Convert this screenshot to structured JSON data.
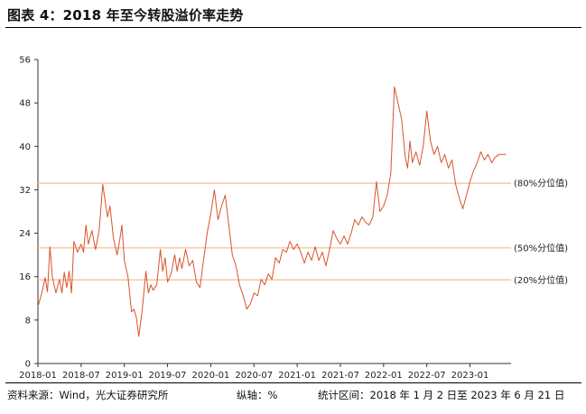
{
  "header": {
    "title": "图表 4：2018 年至今转股溢价率走势"
  },
  "footer": {
    "source": "资料来源：Wind，光大证券研究所",
    "unit": "纵轴：%",
    "period": "统计区间：2018 年 1 月 2 日至 2023 年 6 月 21 日"
  },
  "chart_data": {
    "type": "line",
    "title": "图表 4：2018 年至今转股溢价率走势",
    "xlabel": "",
    "ylabel": "",
    "ylim": [
      0,
      56
    ],
    "yticks": [
      0,
      8,
      16,
      24,
      32,
      40,
      48,
      56
    ],
    "xlim": [
      "2018-01",
      "2023-06"
    ],
    "xticks": [
      "2018-01",
      "2018-07",
      "2019-01",
      "2019-07",
      "2020-01",
      "2020-07",
      "2021-01",
      "2021-07",
      "2022-01",
      "2022-07",
      "2023-01"
    ],
    "grid": false,
    "line_color": "#d9532c",
    "reference_color": "#f5c49e",
    "reference_lines": [
      {
        "label": "(80%分位值)",
        "value": 33.2
      },
      {
        "label": "(50%分位值)",
        "value": 21.3
      },
      {
        "label": "(20%分位值)",
        "value": 15.4
      }
    ],
    "series": [
      {
        "values": [
          [
            "2018-01",
            10.5
          ],
          [
            "2018-01",
            12.8
          ],
          [
            "2018-02",
            15.8
          ],
          [
            "2018-02",
            13.2
          ],
          [
            "2018-02",
            21.5
          ],
          [
            "2018-03",
            16.0
          ],
          [
            "2018-03",
            13.0
          ],
          [
            "2018-04",
            15.5
          ],
          [
            "2018-04",
            13.0
          ],
          [
            "2018-04",
            16.8
          ],
          [
            "2018-05",
            14.0
          ],
          [
            "2018-05",
            17.0
          ],
          [
            "2018-05",
            13.0
          ],
          [
            "2018-06",
            22.5
          ],
          [
            "2018-06",
            20.5
          ],
          [
            "2018-07",
            22.0
          ],
          [
            "2018-07",
            20.5
          ],
          [
            "2018-07",
            25.5
          ],
          [
            "2018-08",
            22.0
          ],
          [
            "2018-08",
            24.5
          ],
          [
            "2018-09",
            21.0
          ],
          [
            "2018-09",
            24.5
          ],
          [
            "2018-10",
            33.0
          ],
          [
            "2018-10",
            30.0
          ],
          [
            "2018-10",
            27.0
          ],
          [
            "2018-11",
            29.0
          ],
          [
            "2018-11",
            23.0
          ],
          [
            "2018-12",
            20.0
          ],
          [
            "2018-12",
            22.5
          ],
          [
            "2018-12",
            25.5
          ],
          [
            "2019-01",
            19.0
          ],
          [
            "2019-01",
            16.0
          ],
          [
            "2019-02",
            9.5
          ],
          [
            "2019-02",
            10.0
          ],
          [
            "2019-02",
            8.5
          ],
          [
            "2019-03",
            5.0
          ],
          [
            "2019-03",
            10.0
          ],
          [
            "2019-04",
            17.0
          ],
          [
            "2019-04",
            13.0
          ],
          [
            "2019-04",
            14.5
          ],
          [
            "2019-05",
            13.5
          ],
          [
            "2019-05",
            14.5
          ],
          [
            "2019-06",
            21.0
          ],
          [
            "2019-06",
            17.0
          ],
          [
            "2019-06",
            19.5
          ],
          [
            "2019-07",
            15.0
          ],
          [
            "2019-07",
            16.5
          ],
          [
            "2019-08",
            20.0
          ],
          [
            "2019-08",
            17.0
          ],
          [
            "2019-08",
            19.5
          ],
          [
            "2019-09",
            17.5
          ],
          [
            "2019-09",
            21.0
          ],
          [
            "2019-10",
            18.0
          ],
          [
            "2019-10",
            19.0
          ],
          [
            "2019-11",
            15.0
          ],
          [
            "2019-11",
            14.0
          ],
          [
            "2019-12",
            19.0
          ],
          [
            "2019-12",
            24.0
          ],
          [
            "2020-01",
            27.5
          ],
          [
            "2020-01",
            32.0
          ],
          [
            "2020-02",
            26.5
          ],
          [
            "2020-02",
            29.0
          ],
          [
            "2020-03",
            31.0
          ],
          [
            "2020-03",
            25.5
          ],
          [
            "2020-04",
            20.0
          ],
          [
            "2020-04",
            18.0
          ],
          [
            "2020-05",
            14.5
          ],
          [
            "2020-05",
            12.5
          ],
          [
            "2020-06",
            10.0
          ],
          [
            "2020-06",
            11.0
          ],
          [
            "2020-07",
            13.0
          ],
          [
            "2020-07",
            12.5
          ],
          [
            "2020-08",
            15.5
          ],
          [
            "2020-08",
            14.5
          ],
          [
            "2020-09",
            16.5
          ],
          [
            "2020-09",
            15.5
          ],
          [
            "2020-10",
            19.5
          ],
          [
            "2020-10",
            18.5
          ],
          [
            "2020-11",
            21.0
          ],
          [
            "2020-11",
            20.5
          ],
          [
            "2020-12",
            22.5
          ],
          [
            "2020-12",
            21.0
          ],
          [
            "2021-01",
            22.0
          ],
          [
            "2021-01",
            20.5
          ],
          [
            "2021-02",
            18.5
          ],
          [
            "2021-02",
            20.5
          ],
          [
            "2021-03",
            19.0
          ],
          [
            "2021-03",
            21.5
          ],
          [
            "2021-04",
            19.0
          ],
          [
            "2021-04",
            20.5
          ],
          [
            "2021-05",
            18.0
          ],
          [
            "2021-05",
            21.0
          ],
          [
            "2021-06",
            24.5
          ],
          [
            "2021-06",
            23.0
          ],
          [
            "2021-07",
            22.0
          ],
          [
            "2021-07",
            23.5
          ],
          [
            "2021-08",
            22.0
          ],
          [
            "2021-08",
            24.0
          ],
          [
            "2021-09",
            26.5
          ],
          [
            "2021-09",
            25.5
          ],
          [
            "2021-10",
            27.0
          ],
          [
            "2021-10",
            26.0
          ],
          [
            "2021-11",
            25.5
          ],
          [
            "2021-11",
            27.0
          ],
          [
            "2021-12",
            33.5
          ],
          [
            "2021-12",
            28.0
          ],
          [
            "2022-01",
            29.0
          ],
          [
            "2022-01",
            31.0
          ],
          [
            "2022-02",
            35.0
          ],
          [
            "2022-02",
            51.0
          ],
          [
            "2022-03",
            48.0
          ],
          [
            "2022-03",
            45.0
          ],
          [
            "2022-04",
            38.0
          ],
          [
            "2022-04",
            36.0
          ],
          [
            "2022-04",
            41.0
          ],
          [
            "2022-05",
            37.0
          ],
          [
            "2022-05",
            39.0
          ],
          [
            "2022-06",
            36.5
          ],
          [
            "2022-06",
            40.0
          ],
          [
            "2022-07",
            46.5
          ],
          [
            "2022-07",
            41.0
          ],
          [
            "2022-08",
            38.5
          ],
          [
            "2022-08",
            40.0
          ],
          [
            "2022-09",
            37.0
          ],
          [
            "2022-09",
            38.5
          ],
          [
            "2022-10",
            36.0
          ],
          [
            "2022-10",
            37.5
          ],
          [
            "2022-11",
            33.0
          ],
          [
            "2022-11",
            30.5
          ],
          [
            "2022-12",
            28.5
          ],
          [
            "2022-12",
            31.0
          ],
          [
            "2023-01",
            33.5
          ],
          [
            "2023-01",
            35.5
          ],
          [
            "2023-02",
            37.0
          ],
          [
            "2023-02",
            39.0
          ],
          [
            "2023-03",
            37.5
          ],
          [
            "2023-03",
            38.5
          ],
          [
            "2023-04",
            37.0
          ],
          [
            "2023-04",
            38.0
          ],
          [
            "2023-05",
            38.5
          ],
          [
            "2023-06",
            38.5
          ]
        ]
      }
    ]
  }
}
